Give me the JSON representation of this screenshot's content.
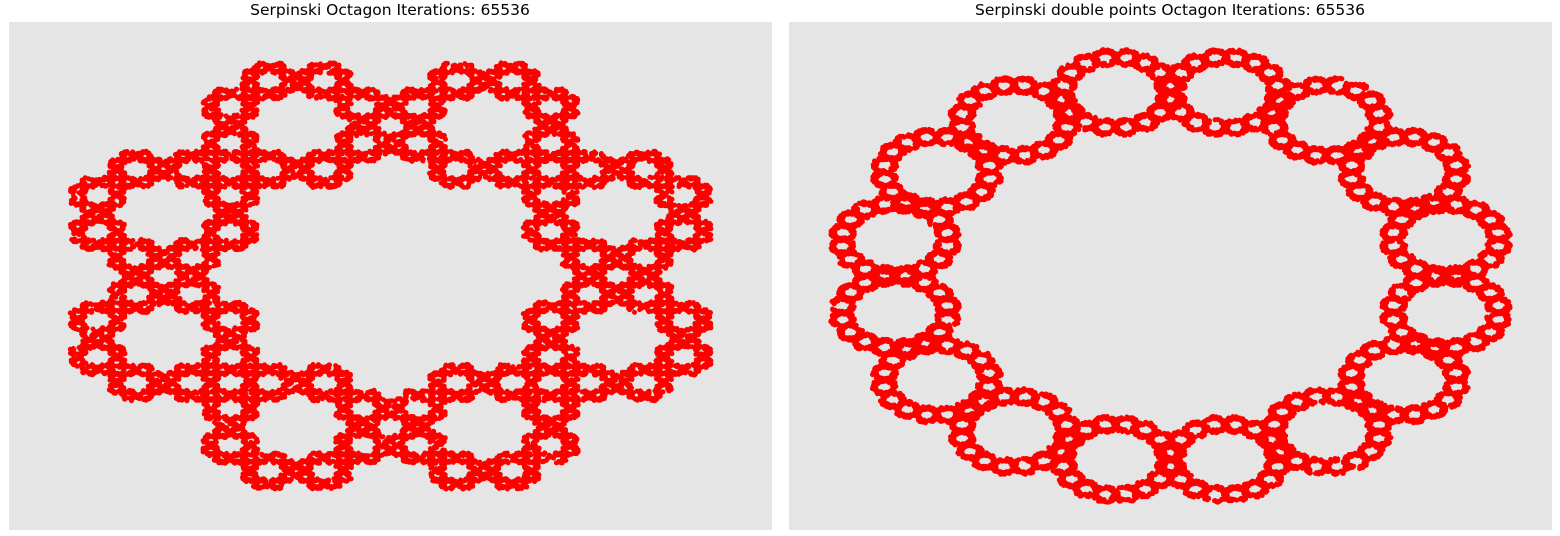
{
  "chart_data": [
    {
      "type": "scatter",
      "title": "Serpinski Octagon Iterations: 65536",
      "xlabel": "",
      "ylabel": "",
      "axis": "off",
      "grid": false,
      "background": "#e5e5e5",
      "series": [
        {
          "color": "#ff0000",
          "fractal": "sierpinski-octagon",
          "vertices": 8,
          "ratio": 0.2929,
          "points": 65536
        }
      ],
      "xlim": [
        -1.1,
        1.1
      ],
      "ylim": [
        -1.1,
        1.1
      ]
    },
    {
      "type": "scatter",
      "title": "Serpinski double points Octagon Iterations: 65536",
      "xlabel": "",
      "ylabel": "",
      "axis": "off",
      "grid": false,
      "background": "#e5e5e5",
      "series": [
        {
          "color": "#ff0000",
          "fractal": "sierpinski-octagon-double-points",
          "vertices": 16,
          "ratio": 0.19,
          "points": 65536
        }
      ],
      "xlim": [
        -1.1,
        1.1
      ],
      "ylim": [
        -1.1,
        1.1
      ]
    }
  ]
}
